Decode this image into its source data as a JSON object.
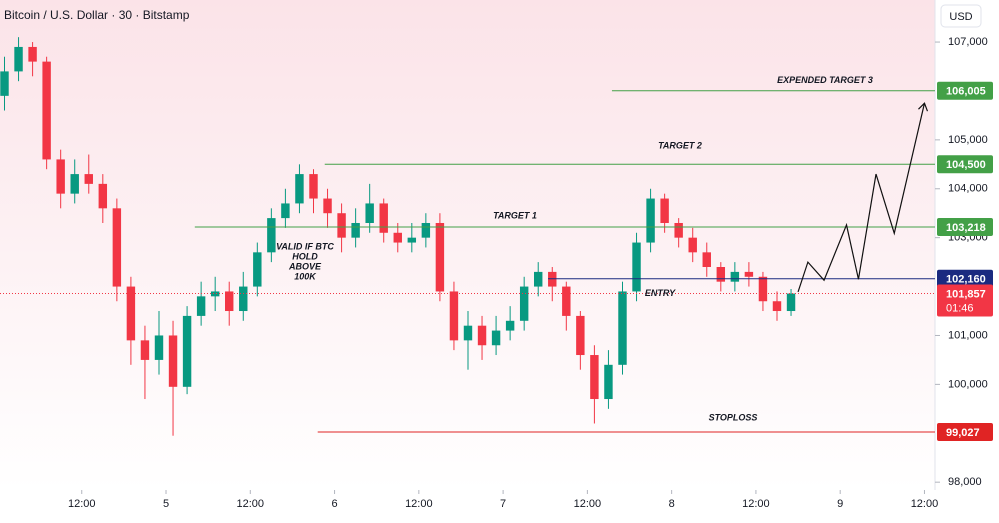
{
  "chart_data": {
    "type": "candlestick",
    "title": "Bitcoin / U.S. Dollar · 30 · Bitstamp",
    "currency": "USD",
    "x": [
      1,
      3,
      5,
      7,
      9,
      11,
      13,
      15,
      17,
      19,
      21,
      23,
      25,
      27,
      29,
      31,
      33,
      35,
      37,
      39,
      41,
      43,
      45,
      47,
      49,
      51,
      53,
      55,
      57,
      59,
      61,
      63,
      65,
      67,
      69,
      71,
      73,
      75,
      77,
      79,
      81,
      83,
      85,
      87,
      89,
      91,
      93,
      95,
      97,
      99,
      101,
      103,
      105,
      107,
      109,
      111,
      113
    ],
    "open": [
      105900,
      106400,
      106900,
      106600,
      104600,
      103900,
      104300,
      104100,
      103600,
      102000,
      100900,
      100500,
      101000,
      99950,
      101400,
      101800,
      101900,
      101500,
      102000,
      102700,
      103400,
      103700,
      104300,
      103800,
      103500,
      103000,
      103300,
      103700,
      103100,
      102900,
      103000,
      103300,
      101900,
      100900,
      101200,
      100800,
      101100,
      101300,
      102000,
      102300,
      102000,
      101400,
      100600,
      99700,
      100400,
      101900,
      102900,
      103800,
      103300,
      103000,
      102700,
      102400,
      102100,
      102300,
      102200,
      101700,
      101500
    ],
    "high": [
      106700,
      107100,
      107000,
      106700,
      104800,
      104600,
      104700,
      104300,
      103800,
      102200,
      101200,
      101500,
      101300,
      101600,
      102100,
      102200,
      102100,
      102300,
      102900,
      103600,
      104000,
      104500,
      104400,
      104000,
      103700,
      103600,
      104100,
      103800,
      103300,
      103300,
      103500,
      103500,
      102100,
      101500,
      101400,
      101400,
      101600,
      102200,
      102500,
      102400,
      102100,
      101500,
      100800,
      100700,
      102100,
      103100,
      104000,
      103900,
      103400,
      103200,
      102900,
      102500,
      102500,
      102500,
      102300,
      101900,
      101950
    ],
    "low": [
      105600,
      106200,
      106300,
      104400,
      103600,
      103700,
      103900,
      103300,
      101700,
      100400,
      99700,
      100200,
      98950,
      99800,
      101200,
      101500,
      101200,
      101300,
      101800,
      102500,
      103200,
      103500,
      103500,
      103200,
      102700,
      102800,
      103100,
      102900,
      102700,
      102700,
      102800,
      101700,
      100700,
      100300,
      100500,
      100600,
      100900,
      101100,
      101800,
      101700,
      101100,
      100300,
      99200,
      99500,
      100200,
      101700,
      102700,
      103100,
      102800,
      102500,
      102200,
      101900,
      101900,
      102000,
      101500,
      101300,
      101400
    ],
    "close": [
      106400,
      106900,
      106600,
      104600,
      103900,
      104300,
      104100,
      103600,
      102000,
      100900,
      100500,
      101000,
      99950,
      101400,
      101800,
      101900,
      101500,
      102000,
      102700,
      103400,
      103700,
      104300,
      103800,
      103500,
      103000,
      103300,
      103700,
      103100,
      102900,
      103000,
      103300,
      101900,
      100900,
      101200,
      100800,
      101100,
      101300,
      102000,
      102300,
      102000,
      101400,
      100600,
      99700,
      100400,
      101900,
      102900,
      103800,
      103300,
      103000,
      102700,
      102400,
      102100,
      102300,
      102200,
      101700,
      101500,
      101857
    ],
    "up_color": "#089981",
    "down_color": "#f23645",
    "projection": {
      "x": [
        114,
        115.4,
        117.7,
        120.9,
        122.6,
        125.1,
        127.7,
        132
      ],
      "values": [
        101890,
        102500,
        102130,
        103260,
        102150,
        104300,
        103090,
        105750
      ],
      "color": "#111111"
    },
    "levels": [
      {
        "name": "EXPENDED TARGET 3",
        "value": 106005,
        "label": "106,005",
        "x_start": 87.5,
        "color": "#43a047"
      },
      {
        "name": "TARGET 2",
        "value": 104500,
        "label": "104,500",
        "x_start": 46.6,
        "color": "#43a047"
      },
      {
        "name": "TARGET 1",
        "value": 103218,
        "label": "103,218",
        "x_start": 28.1,
        "color": "#43a047"
      },
      {
        "name": "ENTRY",
        "value": 102160,
        "label": "102,160",
        "x_start": 78.4,
        "color": "#1a2a80"
      },
      {
        "name": "STOPLOSS",
        "value": 99027,
        "label": "99,027",
        "x_start": 45.6,
        "color": "#e02424"
      }
    ],
    "current_price": {
      "value": 101857,
      "label": "101,857",
      "countdown": "01:46",
      "color": "#f23645"
    },
    "note": [
      "VALID IF BTC",
      "HOLD",
      "ABOVE",
      "100K"
    ],
    "xlim": [
      0.36,
      133.5
    ],
    "ylim": [
      97840,
      107860
    ],
    "xticks": [
      {
        "value": 12,
        "label": "12:00"
      },
      {
        "value": 24,
        "label": "5"
      },
      {
        "value": 36,
        "label": "12:00"
      },
      {
        "value": 48,
        "label": "6"
      },
      {
        "value": 60,
        "label": "12:00"
      },
      {
        "value": 72,
        "label": "7"
      },
      {
        "value": 84,
        "label": "12:00"
      },
      {
        "value": 96,
        "label": "8"
      },
      {
        "value": 108,
        "label": "12:00"
      },
      {
        "value": 120,
        "label": "9"
      },
      {
        "value": 132,
        "label": "12:00"
      }
    ],
    "yticks": [
      {
        "value": 98000,
        "label": "98,000"
      },
      {
        "value": 100000,
        "label": "100,000"
      },
      {
        "value": 101000,
        "label": "101,000"
      },
      {
        "value": 103000,
        "label": "103,000"
      },
      {
        "value": 104000,
        "label": "104,000"
      },
      {
        "value": 105000,
        "label": "105,000"
      },
      {
        "value": 107000,
        "label": "107,000"
      }
    ]
  }
}
